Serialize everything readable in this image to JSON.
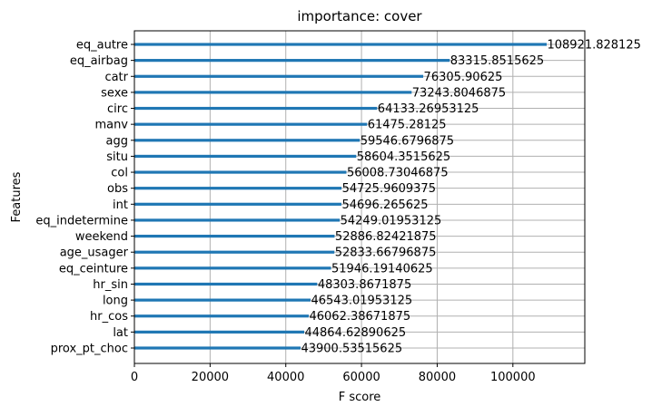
{
  "chart_data": {
    "type": "bar",
    "orientation": "horizontal",
    "title": "importance: cover",
    "xlabel": "F score",
    "ylabel": "Features",
    "xlim": [
      0,
      119000
    ],
    "xticks": [
      0,
      20000,
      40000,
      60000,
      80000,
      100000
    ],
    "xtick_labels": [
      "0",
      "20000",
      "40000",
      "60000",
      "80000",
      "100000"
    ],
    "grid": true,
    "bar_color": "#1f77b4",
    "grid_color": "#b0b0b0",
    "categories": [
      "eq_autre",
      "eq_airbag",
      "catr",
      "sexe",
      "circ",
      "manv",
      "agg",
      "situ",
      "col",
      "obs",
      "int",
      "eq_indetermine",
      "weekend",
      "age_usager",
      "eq_ceinture",
      "hr_sin",
      "long",
      "hr_cos",
      "lat",
      "prox_pt_choc"
    ],
    "values": [
      108921.828125,
      83315.8515625,
      76305.90625,
      73243.8046875,
      64133.26953125,
      61475.28125,
      59546.6796875,
      58604.3515625,
      56008.73046875,
      54725.9609375,
      54696.265625,
      54249.01953125,
      52886.82421875,
      52833.66796875,
      51946.19140625,
      48303.8671875,
      46543.01953125,
      46062.38671875,
      44864.62890625,
      43900.53515625
    ],
    "value_labels": [
      "108921.828125",
      "83315.8515625",
      "76305.90625",
      "73243.8046875",
      "64133.26953125",
      "61475.28125",
      "59546.6796875",
      "58604.3515625",
      "56008.73046875",
      "54725.9609375",
      "54696.265625",
      "54249.01953125",
      "52886.82421875",
      "52833.66796875",
      "51946.19140625",
      "48303.8671875",
      "46543.01953125",
      "46062.38671875",
      "44864.62890625",
      "43900.53515625"
    ]
  }
}
